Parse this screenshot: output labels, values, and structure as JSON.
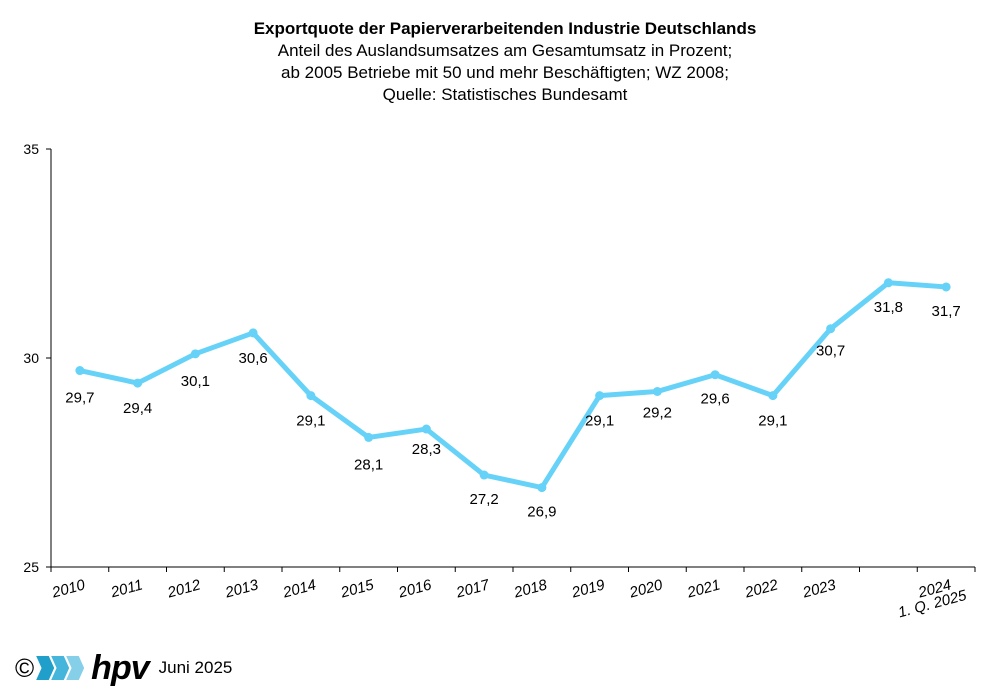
{
  "titles": {
    "main": "Exportquote der Papierverarbeitenden Industrie Deutschlands",
    "line2": "Anteil des Auslandsumsatzes  am Gesamtumsatz in Prozent;",
    "line3": "ab 2005 Betriebe mit 50 und mehr Beschäftigten; WZ 2008;",
    "line4": "Quelle: Statistisches Bundesamt"
  },
  "footer": {
    "copyright": "©",
    "logo_text": "hpv",
    "date": "Juni 2025"
  },
  "colors": {
    "line": "#66d2f8",
    "logo": [
      "#1f9fc9",
      "#46b5dc",
      "#86cfe9"
    ]
  },
  "chart_data": {
    "type": "line",
    "x": [
      "2010",
      "2011",
      "2012",
      "2013",
      "2014",
      "2015",
      "2016",
      "2017",
      "2018",
      "2019",
      "2020",
      "2021",
      "2022",
      "2023",
      "2024",
      "1. Q. 2025"
    ],
    "series": [
      {
        "values": [
          29.7,
          29.4,
          30.1,
          30.6,
          29.1,
          28.1,
          28.3,
          27.2,
          26.9,
          29.1,
          29.2,
          29.6,
          29.1,
          30.7,
          31.8,
          31.7
        ],
        "labels": [
          "29,7",
          "29,4",
          "30,1",
          "30,6",
          "29,1",
          "28,1",
          "28,3",
          "27,2",
          "26,9",
          "29,1",
          "29,2",
          "29,6",
          "29,1",
          "30,7",
          "31,8",
          "31,7"
        ]
      }
    ],
    "y_ticks": [
      "25",
      "30",
      "35"
    ],
    "ylim": [
      25,
      35
    ],
    "grid": false,
    "legend": "none"
  }
}
